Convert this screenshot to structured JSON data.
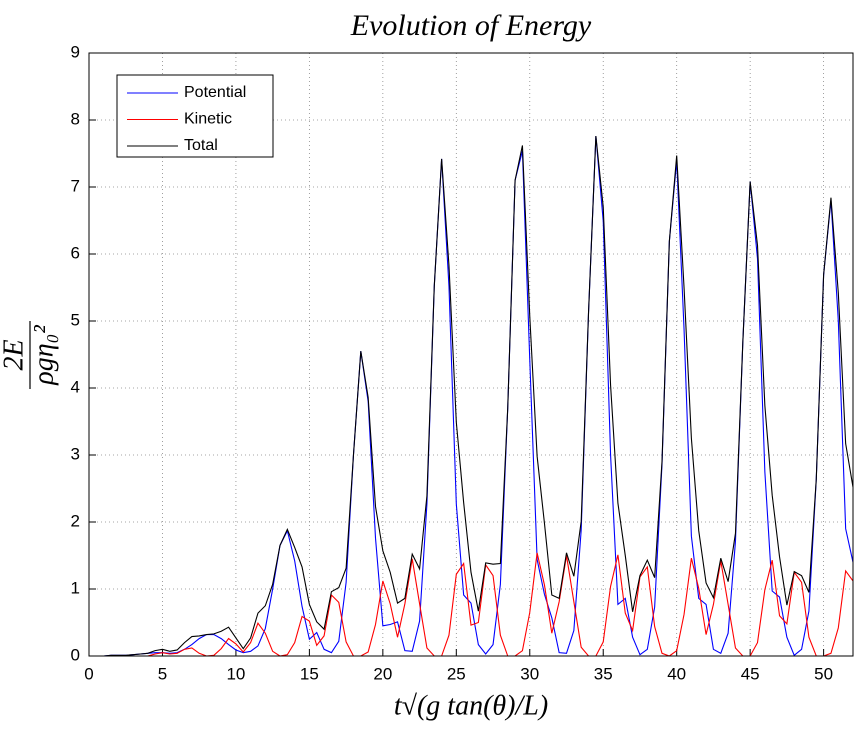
{
  "chart_data": {
    "type": "line",
    "title": "Evolution of Energy",
    "x_label": "t√(g tan(θ)/L)",
    "y_label": {
      "numerator": "2E",
      "denominator": "ρgη₀²"
    },
    "xlim": [
      0,
      52
    ],
    "ylim": [
      0,
      9
    ],
    "xticks": [
      0,
      5,
      10,
      15,
      20,
      25,
      30,
      35,
      40,
      45,
      50
    ],
    "yticks": [
      0,
      1,
      2,
      3,
      4,
      5,
      6,
      7,
      8,
      9
    ],
    "grid": true,
    "legend": "northwest",
    "x": [
      0,
      0.5,
      1,
      1.5,
      2,
      2.5,
      3,
      3.5,
      4,
      4.5,
      5,
      5.5,
      6,
      6.5,
      7,
      7.5,
      8,
      8.5,
      9,
      9.5,
      10,
      10.5,
      11,
      11.5,
      12,
      12.5,
      13,
      13.5,
      14,
      14.5,
      15,
      15.5,
      16,
      16.5,
      17,
      17.5,
      18,
      18.5,
      19,
      19.5,
      20,
      20.5,
      21,
      21.5,
      22,
      22.5,
      23,
      23.5,
      24,
      24.5,
      25,
      25.5,
      26,
      26.5,
      27,
      27.5,
      28,
      28.5,
      29,
      29.5,
      30,
      30.5,
      31,
      31.5,
      32,
      32.5,
      33,
      33.5,
      34,
      34.5,
      35,
      35.5,
      36,
      36.5,
      37,
      37.5,
      38,
      38.5,
      39,
      39.5,
      40,
      40.5,
      41,
      41.5,
      42,
      42.5,
      43,
      43.5,
      44,
      44.5,
      45,
      45.5,
      46,
      46.5,
      47,
      47.5,
      48,
      48.5,
      49,
      49.5,
      50,
      50.5,
      51,
      51.5,
      52
    ],
    "series": [
      {
        "name": "Potential",
        "color": "#0000ff",
        "values": [
          0,
          0,
          0,
          0.01,
          0.01,
          0.01,
          0.02,
          0.03,
          0.04,
          0.05,
          0.05,
          0.04,
          0.05,
          0.1,
          0.17,
          0.26,
          0.32,
          0.32,
          0.26,
          0.17,
          0.09,
          0.05,
          0.07,
          0.15,
          0.41,
          1.0,
          1.65,
          1.87,
          1.42,
          0.74,
          0.25,
          0.35,
          0.1,
          0.05,
          0.22,
          1.1,
          3.0,
          4.55,
          3.8,
          1.76,
          0.45,
          0.47,
          0.51,
          0.08,
          0.07,
          0.52,
          2.27,
          5.52,
          7.42,
          5.52,
          2.27,
          0.91,
          0.79,
          0.17,
          0.03,
          0.17,
          1.07,
          3.7,
          7.1,
          7.54,
          4.42,
          1.44,
          0.92,
          0.57,
          0.05,
          0.04,
          0.38,
          1.88,
          5.13,
          7.76,
          6.49,
          3.0,
          0.77,
          0.86,
          0.28,
          0.02,
          0.1,
          0.73,
          2.86,
          6.19,
          7.39,
          4.88,
          1.79,
          0.86,
          0.77,
          0.1,
          0.04,
          0.34,
          1.71,
          4.68,
          7.08,
          5.93,
          2.75,
          0.97,
          0.88,
          0.28,
          0.01,
          0.1,
          0.67,
          2.64,
          5.69,
          6.8,
          5.0,
          1.9,
          1.4
        ]
      },
      {
        "name": "Kinetic",
        "color": "#ff0000",
        "values": [
          0,
          0,
          0,
          0,
          0,
          0,
          0,
          0,
          0,
          0.03,
          0.05,
          0.03,
          0.04,
          0.1,
          0.12,
          0.04,
          0,
          0.01,
          0.11,
          0.26,
          0.18,
          0.06,
          0.2,
          0.49,
          0.34,
          0.07,
          0,
          0.02,
          0.2,
          0.59,
          0.52,
          0.16,
          0.3,
          0.91,
          0.8,
          0.21,
          0,
          0,
          0.06,
          0.47,
          1.12,
          0.78,
          0.28,
          0.78,
          1.45,
          0.78,
          0.12,
          0,
          0,
          0.31,
          1.22,
          1.38,
          0.46,
          0.5,
          1.36,
          1.2,
          0.31,
          0,
          0,
          0.08,
          0.65,
          1.54,
          1.06,
          0.34,
          0.81,
          1.5,
          0.81,
          0.13,
          0,
          0,
          0.21,
          1.04,
          1.51,
          0.64,
          0.38,
          1.18,
          1.33,
          0.44,
          0.04,
          0,
          0.08,
          0.62,
          1.46,
          1.01,
          0.32,
          0.77,
          1.42,
          0.77,
          0.12,
          0,
          0,
          0.2,
          0.99,
          1.43,
          0.6,
          0.48,
          1.25,
          1.1,
          0.28,
          0,
          0,
          0.04,
          0.42,
          1.27,
          1.12
        ]
      },
      {
        "name": "Total",
        "color": "#000000",
        "values": [
          0,
          0,
          0,
          0.01,
          0.01,
          0.01,
          0.02,
          0.03,
          0.04,
          0.08,
          0.1,
          0.07,
          0.09,
          0.2,
          0.29,
          0.3,
          0.32,
          0.33,
          0.37,
          0.43,
          0.27,
          0.11,
          0.27,
          0.64,
          0.75,
          1.07,
          1.65,
          1.89,
          1.62,
          1.33,
          0.77,
          0.51,
          0.4,
          0.96,
          1.02,
          1.31,
          3.0,
          4.55,
          3.86,
          2.23,
          1.57,
          1.25,
          0.79,
          0.86,
          1.52,
          1.3,
          2.39,
          5.52,
          7.42,
          5.83,
          3.49,
          2.29,
          1.25,
          0.67,
          1.39,
          1.37,
          1.38,
          3.7,
          7.1,
          7.62,
          5.07,
          2.98,
          1.98,
          0.91,
          0.86,
          1.54,
          1.19,
          2.01,
          5.13,
          7.76,
          6.7,
          4.04,
          2.28,
          1.5,
          0.66,
          1.2,
          1.43,
          1.17,
          2.9,
          6.19,
          7.47,
          5.5,
          3.25,
          1.87,
          1.09,
          0.87,
          1.46,
          1.11,
          1.83,
          4.68,
          7.08,
          6.13,
          3.74,
          2.4,
          1.48,
          0.76,
          1.26,
          1.2,
          0.95,
          2.64,
          5.69,
          6.84,
          5.42,
          3.17,
          2.52
        ]
      }
    ]
  }
}
